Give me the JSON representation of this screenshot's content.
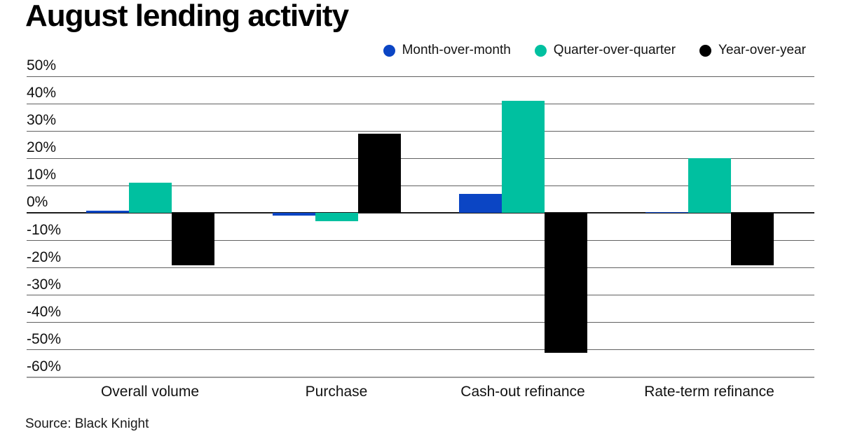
{
  "chart_data": {
    "type": "bar",
    "title": "August lending activity",
    "categories": [
      "Overall volume",
      "Purchase",
      "Cash-out refinance",
      "Rate-term refinance"
    ],
    "series": [
      {
        "name": "Month-over-month",
        "color": "#0b45c4",
        "values": [
          1,
          -1,
          7,
          0.5
        ]
      },
      {
        "name": "Quarter-over-quarter",
        "color": "#00c0a0",
        "values": [
          11,
          -3,
          41,
          20
        ]
      },
      {
        "name": "Year-over-year",
        "color": "#000000",
        "values": [
          -19,
          29,
          -51,
          -19
        ]
      }
    ],
    "ylabel": "",
    "xlabel": "",
    "ylim": [
      -60,
      50
    ],
    "ytick_step": 10,
    "ytick_format": "percent",
    "grid": true,
    "legend_position": "top-right",
    "source": "Source: Black Knight",
    "background": "#ffffff"
  }
}
